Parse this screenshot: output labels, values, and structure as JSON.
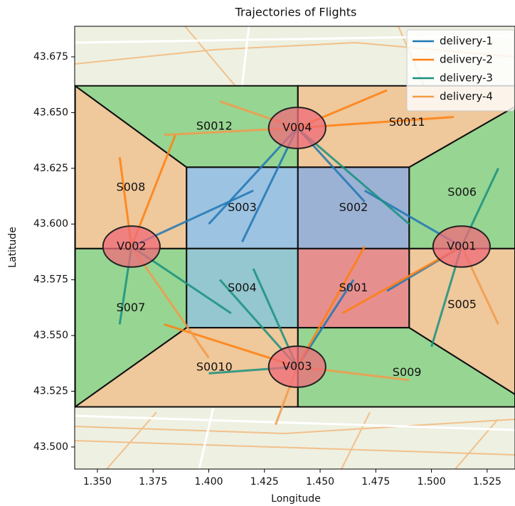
{
  "chart_data": {
    "type": "trajectory",
    "title": "Trajectories of Flights",
    "x_label": "Longitude",
    "y_label": "Latitude",
    "xlim": [
      1.3398,
      1.5375
    ],
    "ylim": [
      43.4901,
      43.6887
    ],
    "xticks": [
      {
        "value": 1.35,
        "label": "1.350"
      },
      {
        "value": 1.375,
        "label": "1.375"
      },
      {
        "value": 1.4,
        "label": "1.400"
      },
      {
        "value": 1.425,
        "label": "1.425"
      },
      {
        "value": 1.45,
        "label": "1.450"
      },
      {
        "value": 1.475,
        "label": "1.475"
      },
      {
        "value": 1.5,
        "label": "1.500"
      },
      {
        "value": 1.525,
        "label": "1.525"
      }
    ],
    "yticks": [
      {
        "value": 43.5,
        "label": "43.500"
      },
      {
        "value": 43.525,
        "label": "43.525"
      },
      {
        "value": 43.55,
        "label": "43.550"
      },
      {
        "value": 43.575,
        "label": "43.575"
      },
      {
        "value": 43.6,
        "label": "43.600"
      },
      {
        "value": 43.625,
        "label": "43.625"
      },
      {
        "value": 43.65,
        "label": "43.650"
      },
      {
        "value": 43.675,
        "label": "43.675"
      }
    ],
    "legend": "upper right",
    "sectors": [
      {
        "name": "S001",
        "color": "#e0404a",
        "x": [
          1.44,
          1.49,
          1.49,
          1.44
        ],
        "y": [
          43.589,
          43.589,
          43.5535,
          43.5535
        ]
      },
      {
        "name": "S002",
        "color": "#5a80c8",
        "x": [
          1.44,
          1.49,
          1.49,
          1.44
        ],
        "y": [
          43.6255,
          43.6255,
          43.589,
          43.589
        ]
      },
      {
        "name": "S003",
        "color": "#5a9ee0",
        "x": [
          1.39,
          1.44,
          1.44,
          1.39
        ],
        "y": [
          43.6255,
          43.6255,
          43.589,
          43.589
        ]
      },
      {
        "name": "S004",
        "color": "#4aa6c0",
        "x": [
          1.39,
          1.44,
          1.44,
          1.39
        ],
        "y": [
          43.589,
          43.589,
          43.5535,
          43.5535
        ]
      },
      {
        "name": "S005",
        "color": "#f0a860",
        "x": [
          1.49,
          1.5375,
          1.5375,
          1.49
        ],
        "y": [
          43.589,
          43.589,
          43.5236,
          43.5535
        ]
      },
      {
        "name": "S006",
        "color": "#50c050",
        "x": [
          1.49,
          1.5375,
          1.5375,
          1.49
        ],
        "y": [
          43.6255,
          43.6527,
          43.589,
          43.589
        ]
      },
      {
        "name": "S007",
        "color": "#50c050",
        "x": [
          1.34,
          1.39,
          1.39,
          1.34
        ],
        "y": [
          43.589,
          43.589,
          43.5535,
          43.518
        ]
      },
      {
        "name": "S008",
        "color": "#f0a860",
        "x": [
          1.34,
          1.39,
          1.39,
          1.34
        ],
        "y": [
          43.662,
          43.6255,
          43.589,
          43.589
        ]
      },
      {
        "name": "S009",
        "color": "#50c050",
        "x": [
          1.44,
          1.49,
          1.5375,
          1.5375,
          1.44
        ],
        "y": [
          43.5535,
          43.5535,
          43.5236,
          43.518,
          43.518
        ]
      },
      {
        "name": "S0010",
        "color": "#f0a860",
        "x": [
          1.34,
          1.44,
          1.44,
          1.39
        ],
        "y": [
          43.518,
          43.518,
          43.5535,
          43.5535
        ]
      },
      {
        "name": "S0011",
        "color": "#f0a860",
        "x": [
          1.44,
          1.5375,
          1.5375,
          1.49,
          1.44
        ],
        "y": [
          43.662,
          43.662,
          43.6527,
          43.6255,
          43.6255
        ]
      },
      {
        "name": "S0012",
        "color": "#50c050",
        "x": [
          1.34,
          1.44,
          1.44,
          1.39
        ],
        "y": [
          43.662,
          43.662,
          43.6255,
          43.6255
        ]
      }
    ],
    "vertiport_size": [
      0.0128,
      0.0092
    ],
    "vertiports": [
      {
        "name": "V001",
        "x": 1.5135,
        "y": 43.5899
      },
      {
        "name": "V002",
        "x": 1.3653,
        "y": 43.5899
      },
      {
        "name": "V003",
        "x": 1.4397,
        "y": 43.536
      },
      {
        "name": "V004",
        "x": 1.4397,
        "y": 43.6431
      }
    ],
    "series": [
      {
        "name": "delivery-1",
        "color": "#1f77b4",
        "trajectories": [
          {
            "x": [
              1.4397,
              1.4
            ],
            "y": [
              43.6431,
              43.6
            ]
          },
          {
            "x": [
              1.4397,
              1.47
            ],
            "y": [
              43.6431,
              43.61
            ]
          },
          {
            "x": [
              1.4397,
              1.415
            ],
            "y": [
              43.6431,
              43.592
            ]
          },
          {
            "x": [
              1.5135,
              1.47
            ],
            "y": [
              43.5899,
              43.615
            ]
          },
          {
            "x": [
              1.5135,
              1.48
            ],
            "y": [
              43.5899,
              43.57
            ]
          },
          {
            "x": [
              1.3653,
              1.42
            ],
            "y": [
              43.5899,
              43.615
            ]
          },
          {
            "x": [
              1.4397,
              1.465
            ],
            "y": [
              43.536,
              43.575
            ]
          }
        ]
      },
      {
        "name": "delivery-2",
        "color": "#ff7f0e",
        "trajectories": [
          {
            "x": [
              1.4397,
              1.51
            ],
            "y": [
              43.6431,
              43.648
            ]
          },
          {
            "x": [
              1.4397,
              1.48
            ],
            "y": [
              43.6431,
              43.66
            ]
          },
          {
            "x": [
              1.3653,
              1.36
            ],
            "y": [
              43.5899,
              43.63
            ]
          },
          {
            "x": [
              1.3653,
              1.385
            ],
            "y": [
              43.5899,
              43.64
            ]
          },
          {
            "x": [
              1.4397,
              1.38
            ],
            "y": [
              43.536,
              43.555
            ]
          },
          {
            "x": [
              1.4397,
              1.47
            ],
            "y": [
              43.536,
              43.59
            ]
          },
          {
            "x": [
              1.5135,
              1.46
            ],
            "y": [
              43.5899,
              43.56
            ]
          }
        ]
      },
      {
        "name": "delivery-3",
        "color": "#17917f",
        "trajectories": [
          {
            "x": [
              1.4397,
              1.405
            ],
            "y": [
              43.536,
              43.575
            ]
          },
          {
            "x": [
              1.4397,
              1.42
            ],
            "y": [
              43.536,
              43.58
            ]
          },
          {
            "x": [
              1.3653,
              1.41
            ],
            "y": [
              43.5899,
              43.56
            ]
          },
          {
            "x": [
              1.3653,
              1.36
            ],
            "y": [
              43.5899,
              43.555
            ]
          },
          {
            "x": [
              1.5135,
              1.53
            ],
            "y": [
              43.5899,
              43.625
            ]
          },
          {
            "x": [
              1.5135,
              1.5
            ],
            "y": [
              43.5899,
              43.545
            ]
          },
          {
            "x": [
              1.4397,
              1.49
            ],
            "y": [
              43.6431,
              43.6
            ]
          },
          {
            "x": [
              1.4397,
              1.4
            ],
            "y": [
              43.536,
              43.533
            ]
          }
        ]
      },
      {
        "name": "delivery-4",
        "color": "#f29a4a",
        "trajectories": [
          {
            "x": [
              1.4397,
              1.405
            ],
            "y": [
              43.6431,
              43.655
            ]
          },
          {
            "x": [
              1.4397,
              1.38
            ],
            "y": [
              43.6431,
              43.64
            ]
          },
          {
            "x": [
              1.4397,
              1.49
            ],
            "y": [
              43.536,
              43.53
            ]
          },
          {
            "x": [
              1.5135,
              1.53
            ],
            "y": [
              43.5899,
              43.555
            ]
          },
          {
            "x": [
              1.3653,
              1.4
            ],
            "y": [
              43.5899,
              43.54
            ]
          },
          {
            "x": [
              1.4397,
              1.43
            ],
            "y": [
              43.536,
              43.51
            ]
          }
        ]
      }
    ]
  }
}
